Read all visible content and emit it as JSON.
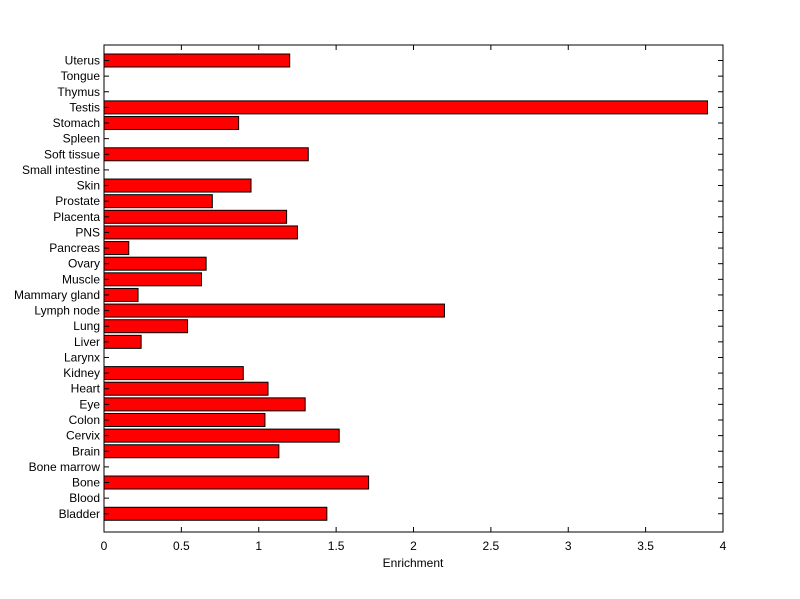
{
  "chart_data": {
    "type": "bar",
    "orientation": "horizontal",
    "title": "",
    "xlabel": "Enrichment",
    "ylabel": "",
    "xlim": [
      0,
      4
    ],
    "xticks": [
      0,
      0.5,
      1,
      1.5,
      2,
      2.5,
      3,
      3.5,
      4
    ],
    "xtick_labels": [
      "0",
      "0.5",
      "1",
      "1.5",
      "2",
      "2.5",
      "3",
      "3.5",
      "4"
    ],
    "grid": false,
    "bar_color": "#ff0000",
    "bar_edge_color": "#000000",
    "categories": [
      "Uterus",
      "Tongue",
      "Thymus",
      "Testis",
      "Stomach",
      "Spleen",
      "Soft tissue",
      "Small intestine",
      "Skin",
      "Prostate",
      "Placenta",
      "PNS",
      "Pancreas",
      "Ovary",
      "Muscle",
      "Mammary gland",
      "Lymph node",
      "Lung",
      "Liver",
      "Larynx",
      "Kidney",
      "Heart",
      "Eye",
      "Colon",
      "Cervix",
      "Brain",
      "Bone marrow",
      "Bone",
      "Blood",
      "Bladder"
    ],
    "values": [
      1.2,
      0,
      0,
      3.9,
      0.87,
      0,
      1.32,
      0,
      0.95,
      0.7,
      1.18,
      1.25,
      0.16,
      0.66,
      0.63,
      0.22,
      2.2,
      0.54,
      0.24,
      0,
      0.9,
      1.06,
      1.3,
      1.04,
      1.52,
      1.13,
      0,
      1.71,
      0,
      1.44
    ]
  }
}
